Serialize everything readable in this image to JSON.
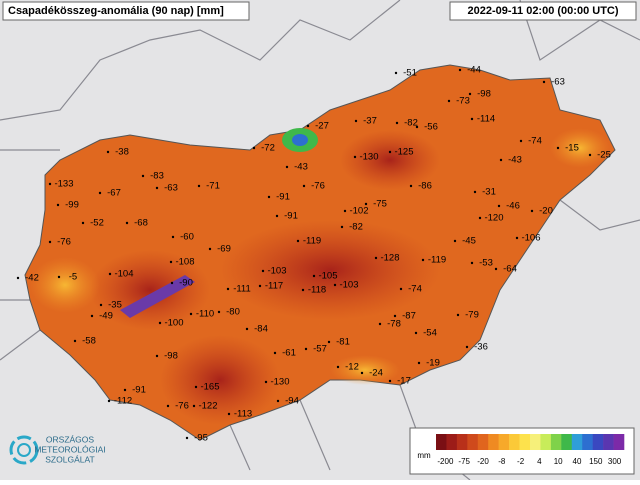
{
  "header": {
    "title": "Csapadékösszeg-anomália (90 nap) [mm]",
    "timestamp": "2022-09-11 02:00 (00:00 UTC)"
  },
  "map": {
    "values": [
      -51,
      -44,
      -63,
      -73,
      -98,
      -27,
      -37,
      -82,
      -56,
      -114,
      -74,
      -38,
      -72,
      -15,
      -25,
      -130,
      -125,
      -43,
      -43,
      -133,
      -83,
      -63,
      -71,
      -76,
      -86,
      -67,
      -91,
      -31,
      -99,
      -75,
      -102,
      -46,
      -20,
      -52,
      -68,
      -91,
      -82,
      -120,
      -76,
      -60,
      -69,
      -119,
      -45,
      -106,
      -108,
      -128,
      -119,
      -53,
      -64,
      -42,
      -5,
      -104,
      -90,
      -103,
      -105,
      -111,
      -117,
      -103,
      -118,
      -74,
      -35,
      -49,
      -110,
      -80,
      -100,
      -79,
      -78,
      -87,
      -84,
      -54,
      -58,
      -81,
      -36,
      -98,
      -61,
      -57,
      -12,
      -24,
      -19,
      -17,
      -130,
      -165,
      -91,
      -112,
      -94,
      -76,
      -122,
      -113,
      -95
    ]
  },
  "legend": {
    "unit": "mm",
    "ticks": [
      -200,
      -75,
      -20,
      -8,
      -2,
      4,
      10,
      40,
      150,
      300
    ],
    "colors": [
      "#7a0f14",
      "#9c1c18",
      "#b8301a",
      "#cf4a1c",
      "#e0651e",
      "#ef8a22",
      "#f7a92a",
      "#fbc938",
      "#fde24c",
      "#f6f07a",
      "#c8ec5a",
      "#7fd24a",
      "#3fb84a",
      "#2f9ed8",
      "#2d6fd0",
      "#3a48c0",
      "#5a36b0",
      "#7c2aa8"
    ]
  },
  "logo": {
    "line1": "ORSZÁGOS",
    "line2": "METEOROLÓGIAI",
    "line3": "SZOLGÁLAT"
  }
}
